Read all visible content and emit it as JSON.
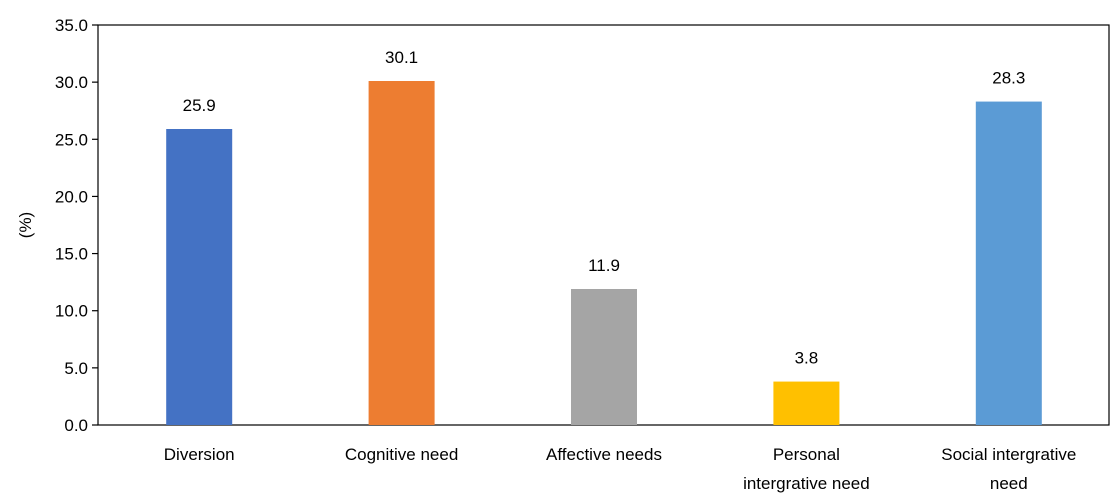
{
  "chart_data": {
    "type": "bar",
    "title": "",
    "xlabel": "",
    "ylabel": "(%)",
    "ylim": [
      0,
      35
    ],
    "y_ticks": [
      "0.0",
      "5.0",
      "10.0",
      "15.0",
      "20.0",
      "25.0",
      "30.0",
      "35.0"
    ],
    "grid": false,
    "legend": "none",
    "categories": [
      [
        "Diversion"
      ],
      [
        "Cognitive need"
      ],
      [
        "Affective needs"
      ],
      [
        "Personal",
        "intergrative need"
      ],
      [
        "Social intergrative",
        "need"
      ]
    ],
    "values": [
      25.9,
      30.1,
      11.9,
      3.8,
      28.3
    ],
    "value_labels": [
      "25.9",
      "30.1",
      "11.9",
      "3.8",
      "28.3"
    ],
    "colors": [
      "#4472C4",
      "#ED7D31",
      "#A5A5A5",
      "#FFC000",
      "#5B9BD5"
    ]
  }
}
